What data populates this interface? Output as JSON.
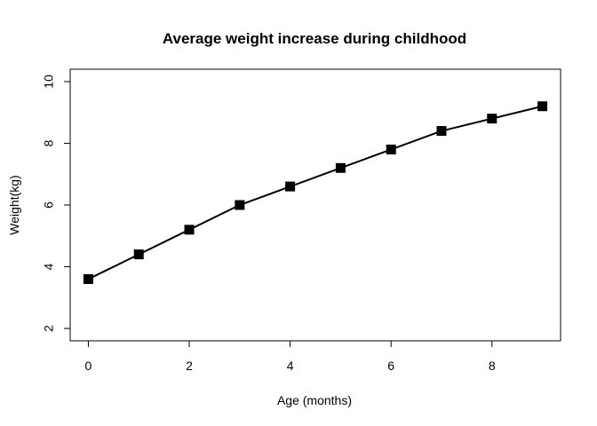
{
  "chart_data": {
    "type": "line",
    "title": "Average weight increase during childhood",
    "xlabel": "Age (months)",
    "ylabel": "Weight(kg)",
    "x": [
      0,
      1,
      2,
      3,
      4,
      5,
      6,
      7,
      8,
      9
    ],
    "series": [
      {
        "values": [
          3.6,
          4.4,
          5.2,
          6.0,
          6.6,
          7.2,
          7.8,
          8.4,
          8.8,
          9.2
        ]
      }
    ],
    "xlim": [
      -0.36,
      9.36
    ],
    "ylim": [
      1.6,
      10.4
    ],
    "xticks": [
      0,
      2,
      4,
      6,
      8
    ],
    "yticks": [
      2,
      4,
      6,
      8,
      10
    ],
    "xtick_labels": [
      "0",
      "2",
      "4",
      "6",
      "8"
    ],
    "ytick_labels": [
      "2",
      "4",
      "6",
      "8",
      "10"
    ],
    "marker": "filled-square",
    "line_color": "#000000",
    "grid": false,
    "legend": "none"
  }
}
